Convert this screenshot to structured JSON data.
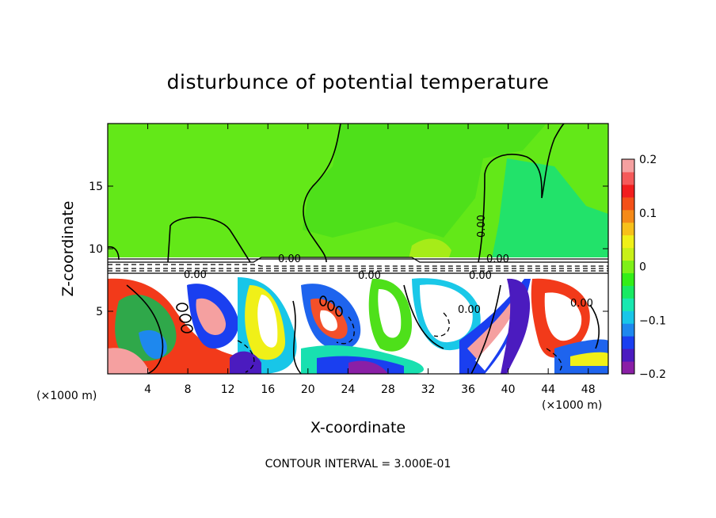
{
  "chart_data": {
    "type": "heatmap",
    "title": "disturbunce of potential temperature",
    "xlabel": "X-coordinate",
    "ylabel": "Z-coordinate",
    "x_unit": "(×1000 m)",
    "z_unit": "(×1000 m)",
    "xlim": [
      0,
      50
    ],
    "ylim": [
      0,
      20
    ],
    "x_ticks": [
      4,
      8,
      12,
      16,
      20,
      24,
      28,
      32,
      36,
      40,
      44,
      48
    ],
    "x_tick_labels": [
      "4",
      "8",
      "12",
      "16",
      "20",
      "24",
      "28",
      "32",
      "36",
      "40",
      "44",
      "48"
    ],
    "y_ticks": [
      5,
      10,
      15
    ],
    "y_tick_labels": [
      "5",
      "10",
      "15"
    ],
    "colorbar": {
      "range": [
        -0.2,
        0.2
      ],
      "ticks": [
        0.2,
        0.1,
        0,
        -0.1,
        -0.2
      ],
      "tick_labels": [
        "0.2",
        "0.1",
        "0",
        "−0.1",
        "−0.2"
      ],
      "colors": [
        "#8a1fa6",
        "#4b1bbf",
        "#1a3ff0",
        "#1e88ee",
        "#18c6e8",
        "#18e8b0",
        "#18ea63",
        "#33ee18",
        "#7ef018",
        "#c8f018",
        "#f0f018",
        "#f7c01a",
        "#f58a18",
        "#f35018",
        "#f21e1e",
        "#f55a5a",
        "#f5a0a0"
      ]
    },
    "contour_labels": [
      "0.00",
      "0.00",
      "0.00",
      "0.00",
      "0.00",
      "0.00",
      "0.00",
      "0.00"
    ],
    "contour_interval_note": "CONTOUR INTERVAL = 3.000E-01"
  }
}
